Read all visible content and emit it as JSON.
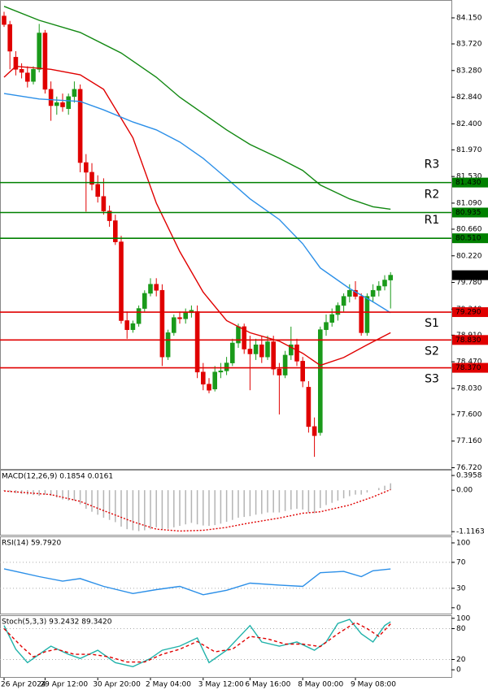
{
  "chart_data": [
    {
      "type": "candlestick",
      "categories": [
        "26 Apr 2024",
        null,
        null,
        null,
        null,
        null,
        null,
        "29 Apr 12:00",
        null,
        null,
        null,
        null,
        null,
        null,
        null,
        null,
        "30 Apr 20:00",
        null,
        null,
        null,
        null,
        null,
        null,
        null,
        null,
        "2 May 04:00",
        null,
        null,
        null,
        null,
        null,
        null,
        null,
        null,
        "3 May 12:00",
        null,
        null,
        null,
        null,
        null,
        null,
        null,
        "6 May 16:00",
        null,
        null,
        null,
        null,
        null,
        null,
        null,
        null,
        "8 May 00:00",
        null,
        null,
        null,
        null,
        null,
        null,
        null,
        null,
        "9 May 08:00",
        null,
        null,
        null,
        null,
        null,
        null
      ],
      "open": [
        84.18,
        84.04,
        83.5,
        83.3,
        83.24,
        83.1,
        83.3,
        83.9,
        82.97,
        82.7,
        82.75,
        82.65,
        82.85,
        82.97,
        81.76,
        81.6,
        81.4,
        81.2,
        80.96,
        80.8,
        80.45,
        79.15,
        79.0,
        79.1,
        79.35,
        79.6,
        79.75,
        79.65,
        78.55,
        78.95,
        79.2,
        79.18,
        79.28,
        79.3,
        78.3,
        78.1,
        78.02,
        78.3,
        78.32,
        78.45,
        78.78,
        79.05,
        78.68,
        78.6,
        78.75,
        78.55,
        78.8,
        78.35,
        78.25,
        78.58,
        78.75,
        78.48,
        78.05,
        77.4,
        77.3,
        79.0,
        79.12,
        79.25,
        79.4,
        79.55,
        79.65,
        79.55,
        78.95,
        79.55,
        79.65,
        79.72,
        79.82
      ],
      "high": [
        84.25,
        84.1,
        83.6,
        83.4,
        83.35,
        83.35,
        84.05,
        83.95,
        83.1,
        82.85,
        82.9,
        82.9,
        83.1,
        83.05,
        81.9,
        81.75,
        81.55,
        81.5,
        81.05,
        80.9,
        80.55,
        79.3,
        79.15,
        79.4,
        79.65,
        79.85,
        79.85,
        79.75,
        79.0,
        79.25,
        79.3,
        79.35,
        79.4,
        79.4,
        78.45,
        78.2,
        78.4,
        78.45,
        78.55,
        78.85,
        79.1,
        79.1,
        78.9,
        78.85,
        78.9,
        78.9,
        78.9,
        78.45,
        78.65,
        79.05,
        78.85,
        78.55,
        78.15,
        77.55,
        79.05,
        79.25,
        79.35,
        79.45,
        79.6,
        79.75,
        79.8,
        79.6,
        79.6,
        79.75,
        79.8,
        79.9,
        79.95
      ],
      "low": [
        84.0,
        83.3,
        83.2,
        83.15,
        83.0,
        83.05,
        83.25,
        82.9,
        82.45,
        82.55,
        82.6,
        82.55,
        82.75,
        81.6,
        80.95,
        81.3,
        81.1,
        80.9,
        80.7,
        80.4,
        79.1,
        78.85,
        78.95,
        79.05,
        79.3,
        79.55,
        79.55,
        78.4,
        78.5,
        78.9,
        79.1,
        79.1,
        79.2,
        78.2,
        78.0,
        77.95,
        77.98,
        78.2,
        78.25,
        78.4,
        78.7,
        78.6,
        78.0,
        78.5,
        78.45,
        78.5,
        78.25,
        77.6,
        78.2,
        78.5,
        78.4,
        78.05,
        77.3,
        76.9,
        77.25,
        78.9,
        79.05,
        79.15,
        79.3,
        79.45,
        79.5,
        78.9,
        78.9,
        79.45,
        79.55,
        79.65,
        79.35
      ],
      "close": [
        84.04,
        83.6,
        83.3,
        83.25,
        83.1,
        83.3,
        83.9,
        82.97,
        82.7,
        82.75,
        82.68,
        82.85,
        82.97,
        81.76,
        81.6,
        81.4,
        81.2,
        80.96,
        80.8,
        80.45,
        79.15,
        79.0,
        79.1,
        79.35,
        79.6,
        79.75,
        79.65,
        78.55,
        78.95,
        79.2,
        79.18,
        79.28,
        79.32,
        78.3,
        78.1,
        78.0,
        78.3,
        78.32,
        78.45,
        78.78,
        79.05,
        78.68,
        78.6,
        78.75,
        78.55,
        78.8,
        78.35,
        78.25,
        78.58,
        78.75,
        78.48,
        78.15,
        77.4,
        77.25,
        79.0,
        79.12,
        79.25,
        79.4,
        79.55,
        79.65,
        79.55,
        78.95,
        79.55,
        79.65,
        79.72,
        79.82,
        79.9
      ],
      "up_color": "#1a9a1a",
      "down_color": "#e00000",
      "lines": [
        {
          "color": "#e00000",
          "x": [
            0,
            2,
            8,
            13,
            17,
            22,
            26,
            30,
            34,
            38,
            42,
            47,
            51,
            54,
            58,
            62,
            66
          ],
          "values": [
            83.17,
            83.35,
            83.3,
            83.21,
            82.97,
            82.17,
            81.09,
            80.29,
            79.62,
            79.15,
            78.95,
            78.81,
            78.61,
            78.41,
            78.54,
            78.75,
            78.95
          ]
        },
        {
          "color": "#2b8fe8",
          "x": [
            0,
            6,
            13,
            17,
            22,
            26,
            30,
            34,
            38,
            42,
            47,
            51,
            54,
            59,
            63,
            66
          ],
          "values": [
            82.9,
            82.81,
            82.77,
            82.63,
            82.43,
            82.3,
            82.1,
            81.83,
            81.5,
            81.16,
            80.82,
            80.42,
            80.02,
            79.68,
            79.46,
            79.28
          ]
        },
        {
          "color": "#118811",
          "x": [
            0,
            6,
            13,
            20,
            26,
            30,
            34,
            38,
            42,
            47,
            51,
            54,
            59,
            63,
            66
          ],
          "values": [
            84.34,
            84.11,
            83.91,
            83.57,
            83.17,
            82.84,
            82.57,
            82.3,
            82.06,
            81.83,
            81.63,
            81.39,
            81.16,
            81.03,
            80.99
          ]
        }
      ],
      "levels": [
        {
          "name": "R3",
          "value": 81.43,
          "label": "81.430",
          "color": "#008000"
        },
        {
          "name": "R2",
          "value": 80.935,
          "label": "80.935",
          "color": "#008000"
        },
        {
          "name": "R1",
          "value": 80.51,
          "label": "80.510",
          "color": "#008000"
        },
        {
          "name": "S1",
          "value": 79.29,
          "label": "79.290",
          "color": "#e00000"
        },
        {
          "name": "S2",
          "value": 78.83,
          "label": "78.830",
          "color": "#e00000"
        },
        {
          "name": "S3",
          "value": 78.37,
          "label": "78.370",
          "color": "#e00000"
        }
      ],
      "last_price": {
        "value": 79.9,
        "label": "79.900"
      },
      "ylim": [
        76.7,
        84.445
      ],
      "yticks": [
        {
          "value": 84.15,
          "label": "84.150"
        },
        {
          "value": 83.72,
          "label": "83.720"
        },
        {
          "value": 83.28,
          "label": "83.280"
        },
        {
          "value": 82.84,
          "label": "82.840"
        },
        {
          "value": 82.4,
          "label": "82.400"
        },
        {
          "value": 81.97,
          "label": "81.970"
        },
        {
          "value": 81.53,
          "label": "81.530"
        },
        {
          "value": 81.09,
          "label": "81.090"
        },
        {
          "value": 80.66,
          "label": "80.660"
        },
        {
          "value": 80.22,
          "label": "80.220"
        },
        {
          "value": 79.78,
          "label": "79.780"
        },
        {
          "value": 79.34,
          "label": "79.340"
        },
        {
          "value": 78.91,
          "label": "78.910"
        },
        {
          "value": 78.47,
          "label": "78.470"
        },
        {
          "value": 78.03,
          "label": "78.030"
        },
        {
          "value": 77.6,
          "label": "77.600"
        },
        {
          "value": 77.16,
          "label": "77.160"
        },
        {
          "value": 76.72,
          "label": "76.720"
        }
      ]
    },
    {
      "type": "macd",
      "title": "MACD(12,26,9) 0.1854 0.0161",
      "color": "#b4b4b4",
      "values": [
        -0.02,
        -0.05,
        -0.08,
        -0.1,
        -0.12,
        -0.13,
        -0.15,
        -0.12,
        -0.15,
        -0.2,
        -0.25,
        -0.28,
        -0.28,
        -0.38,
        -0.5,
        -0.58,
        -0.66,
        -0.74,
        -0.8,
        -0.86,
        -0.98,
        -1.05,
        -1.08,
        -1.1,
        -1.08,
        -1.05,
        -1.0,
        -1.05,
        -1.04,
        -1.0,
        -0.96,
        -0.92,
        -0.88,
        -0.92,
        -0.95,
        -0.96,
        -0.94,
        -0.9,
        -0.85,
        -0.8,
        -0.74,
        -0.72,
        -0.7,
        -0.66,
        -0.64,
        -0.6,
        -0.6,
        -0.6,
        -0.56,
        -0.52,
        -0.5,
        -0.52,
        -0.6,
        -0.62,
        -0.48,
        -0.4,
        -0.34,
        -0.28,
        -0.22,
        -0.16,
        -0.12,
        -0.12,
        -0.06,
        0.0,
        0.06,
        0.12,
        0.1854
      ],
      "lines": [
        {
          "color": "#e00000",
          "style": "dotted",
          "x": [
            0,
            8,
            13,
            17,
            22,
            26,
            30,
            34,
            38,
            42,
            47,
            51,
            54,
            59,
            63,
            66
          ],
          "values": [
            -0.02,
            -0.12,
            -0.3,
            -0.55,
            -0.85,
            -1.05,
            -1.1,
            -1.08,
            -1.0,
            -0.88,
            -0.75,
            -0.62,
            -0.58,
            -0.4,
            -0.18,
            0.0161
          ]
        }
      ],
      "ylim": [
        -1.2,
        0.55
      ],
      "yticks": [
        0.3958,
        {
          "value": 0,
          "label": "0.00"
        },
        -1.1163
      ]
    },
    {
      "type": "line",
      "title": "RSI(14) 59.7920",
      "grid": true,
      "lines": [
        {
          "color": "#2b8fe8",
          "x": [
            0,
            3,
            6,
            10,
            13,
            17,
            22,
            26,
            30,
            34,
            38,
            42,
            47,
            51,
            54,
            58,
            61,
            63,
            66
          ],
          "values": [
            60,
            54,
            48,
            41,
            45,
            33,
            22,
            28,
            33,
            20,
            27,
            38,
            35,
            33,
            54,
            56,
            48,
            57,
            59.792
          ]
        }
      ],
      "ylim": [
        -9,
        110
      ],
      "yticks": [
        100,
        70,
        30,
        0
      ]
    },
    {
      "type": "line",
      "title": "Stoch(5,3,3) 93.2432 89.3420",
      "grid": true,
      "lines": [
        {
          "color": "#20b2aa",
          "x": [
            0,
            2,
            4,
            6,
            8,
            11,
            13,
            16,
            19,
            22,
            25,
            27,
            30,
            33,
            35,
            38,
            42,
            44,
            47,
            50,
            53,
            55,
            57,
            59,
            61,
            63,
            65,
            66
          ],
          "values": [
            86,
            40,
            14,
            30,
            46,
            30,
            22,
            38,
            14,
            6,
            22,
            38,
            46,
            62,
            14,
            38,
            86,
            54,
            46,
            54,
            38,
            54,
            90,
            98,
            70,
            54,
            86,
            93.2432
          ]
        },
        {
          "color": "#e00000",
          "style": "dashed",
          "x": [
            0,
            3,
            5,
            7,
            9,
            12,
            15,
            18,
            21,
            24,
            27,
            30,
            33,
            36,
            39,
            42,
            45,
            48,
            51,
            54,
            57,
            60,
            62,
            64,
            66
          ],
          "values": [
            80,
            45,
            25,
            35,
            40,
            30,
            30,
            25,
            15,
            15,
            30,
            40,
            55,
            35,
            40,
            65,
            60,
            50,
            50,
            45,
            70,
            92,
            80,
            65,
            89.342
          ]
        }
      ],
      "ylim": [
        -14,
        106
      ],
      "yticks": [
        100,
        80,
        20,
        0
      ]
    }
  ]
}
